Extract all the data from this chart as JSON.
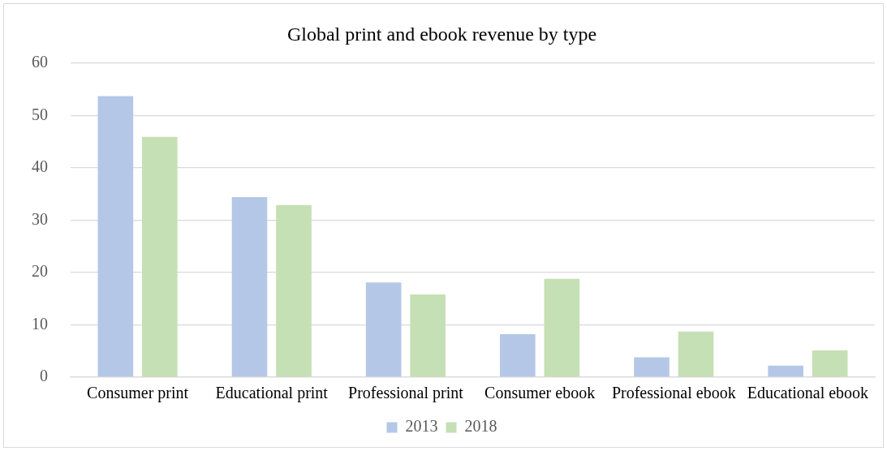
{
  "chart_data": {
    "type": "bar",
    "title": "Global print and ebook revenue by type",
    "categories": [
      "Consumer print",
      "Educational print",
      "Professional print",
      "Consumer ebook",
      "Professional ebook",
      "Educational ebook"
    ],
    "series": [
      {
        "name": "2013",
        "color": "#b4c7e7",
        "values": [
          53.7,
          34.4,
          18.1,
          8.2,
          3.8,
          2.2
        ]
      },
      {
        "name": "2018",
        "color": "#c5e0b4",
        "values": [
          45.9,
          32.9,
          15.8,
          18.8,
          8.7,
          5.1
        ]
      }
    ],
    "ylim": [
      0,
      60
    ],
    "yticks": [
      0,
      10,
      20,
      30,
      40,
      50,
      60
    ],
    "grid": "y",
    "legend": "bottom"
  }
}
